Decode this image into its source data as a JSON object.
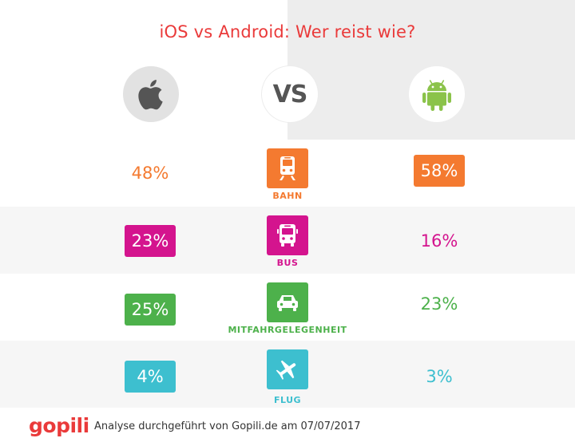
{
  "title": "iOS vs Android: Wer reist wie?",
  "vs_label": "VS",
  "colors": {
    "title": "#ea3a3a",
    "bahn": "#f47a30",
    "bus": "#d4148e",
    "mitfahr": "#4db14b",
    "flug": "#3dbfcf"
  },
  "platforms": {
    "ios_icon": "apple-icon",
    "android_icon": "android-icon"
  },
  "rows": [
    {
      "key": "bahn",
      "label": "BAHN",
      "icon": "train-icon",
      "ios": "48%",
      "android": "58%",
      "highlight": "android"
    },
    {
      "key": "bus",
      "label": "BUS",
      "icon": "bus-icon",
      "ios": "23%",
      "android": "16%",
      "highlight": "ios"
    },
    {
      "key": "mitfahr",
      "label": "MITFAHRGELEGENHEIT",
      "icon": "car-icon",
      "ios": "25%",
      "android": "23%",
      "highlight": "ios"
    },
    {
      "key": "flug",
      "label": "FLUG",
      "icon": "plane-icon",
      "ios": "4%",
      "android": "3%",
      "highlight": "ios"
    }
  ],
  "footer": {
    "logo": "gopili",
    "text": "Analyse durchgeführt von Gopili.de am 07/07/2017"
  }
}
